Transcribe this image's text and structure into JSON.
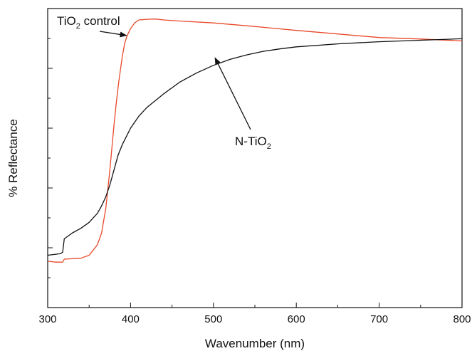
{
  "chart_data": {
    "type": "line",
    "xlabel": "Wavenumber (nm)",
    "ylabel": "% Reflectance",
    "xlim": [
      300,
      800
    ],
    "ylim": [
      0,
      100
    ],
    "x_ticks": [
      300,
      400,
      500,
      600,
      700,
      800
    ],
    "x_tick_labels": [
      "300",
      "400",
      "500",
      "600",
      "700",
      "800"
    ],
    "y_tick_labels_shown": false,
    "grid": false,
    "series": [
      {
        "name": "TiO2 control",
        "label_base": "TiO",
        "label_sub": "2",
        "label_suffix": " control",
        "color": "#e8492a",
        "x": [
          300,
          310,
          318,
          320,
          340,
          350,
          360,
          365,
          370,
          372,
          375,
          378,
          380,
          383,
          386,
          390,
          393,
          396,
          400,
          405,
          410,
          420,
          430,
          440,
          460,
          500,
          550,
          600,
          650,
          700,
          750,
          800
        ],
        "y": [
          15.5,
          15.2,
          15.2,
          16.2,
          16.5,
          17.5,
          21,
          25,
          33,
          38,
          46,
          55,
          61,
          69,
          76,
          84,
          88.5,
          91,
          93.3,
          95.2,
          96.2,
          96.4,
          96.5,
          96.2,
          95.8,
          95.2,
          94.0,
          92.7,
          91.5,
          90.3,
          89.8,
          89.2
        ]
      },
      {
        "name": "N-TiO2",
        "label_base": "N-TiO",
        "label_sub": "2",
        "label_suffix": "",
        "color": "#111111",
        "x": [
          300,
          315,
          318,
          320,
          330,
          340,
          350,
          360,
          365,
          370,
          375,
          380,
          385,
          390,
          400,
          410,
          420,
          440,
          460,
          480,
          500,
          520,
          540,
          560,
          580,
          600,
          650,
          700,
          750,
          800
        ],
        "y": [
          17.5,
          18.0,
          18.5,
          23,
          25,
          26.5,
          28.5,
          31.5,
          34,
          37,
          41,
          46,
          51,
          54.5,
          60,
          64,
          67,
          71.5,
          75.5,
          78.5,
          81,
          83,
          84.5,
          85.7,
          86.5,
          87.2,
          88.2,
          88.9,
          89.4,
          89.9
        ]
      }
    ],
    "annotations": [
      {
        "text_base": "TiO",
        "text_sub": "2",
        "text_suffix": " control",
        "points_to": [
          395,
          91
        ]
      },
      {
        "text_base": "N-TiO",
        "text_sub": "2",
        "text_suffix": "",
        "points_to": [
          502,
          83.5
        ]
      }
    ]
  }
}
